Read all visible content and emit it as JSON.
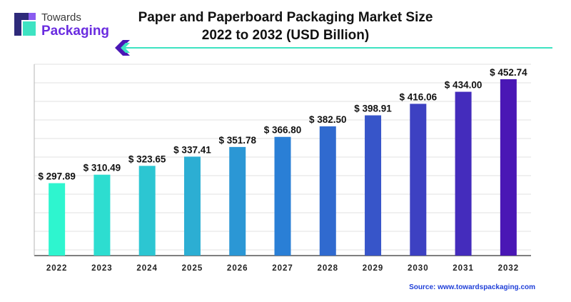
{
  "brand": {
    "line1": "Towards",
    "line2": "Packaging"
  },
  "colors": {
    "teal": "#2ef5cf",
    "blue": "#2a7fd6",
    "purple": "#4a17b5",
    "accent": "#3ee3c2",
    "source": "#1f3fd8"
  },
  "source": "Source: www.towardspackaging.com",
  "chart_data": {
    "type": "bar",
    "title_line1": "Paper and Paperboard Packaging Market Size",
    "title_line2": "2022 to 2032 (USD Billion)",
    "categories": [
      "2022",
      "2023",
      "2024",
      "2025",
      "2026",
      "2027",
      "2028",
      "2029",
      "2030",
      "2031",
      "2032"
    ],
    "values": [
      297.89,
      310.49,
      323.65,
      337.41,
      351.78,
      366.8,
      382.5,
      398.91,
      416.06,
      434.0,
      452.74
    ],
    "value_labels": [
      "$ 297.89",
      "$ 310.49",
      "$ 323.65",
      "$ 337.41",
      "$ 351.78",
      "$ 366.80",
      "$ 382.50",
      "$ 398.91",
      "$ 416.06",
      "$ 434.00",
      "$ 452.74"
    ],
    "ylim": [
      190,
      475
    ],
    "grid": true,
    "gradient_colors": [
      "#2ef5cf",
      "#2a7fd6",
      "#4a17b5"
    ]
  }
}
